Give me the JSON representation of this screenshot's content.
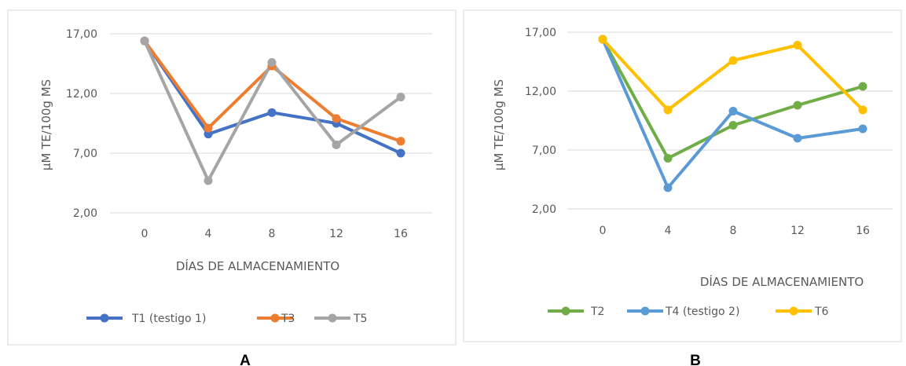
{
  "chart_data": [
    {
      "type": "line",
      "panel_label": "A",
      "xlabel": "DÍAS DE ALMACENAMIENTO",
      "ylabel": "µM TE/100g MS",
      "categories": [
        "0",
        "4",
        "8",
        "12",
        "16"
      ],
      "yticks": [
        "2,00",
        "7,00",
        "12,00",
        "17,00"
      ],
      "ylim": [
        2,
        17
      ],
      "grid": true,
      "legend_position": "bottom",
      "series": [
        {
          "name": "T1 (testigo 1)",
          "color": "#4472c4",
          "values": [
            16.4,
            8.6,
            10.4,
            9.5,
            7.0
          ]
        },
        {
          "name": "T3",
          "color": "#ed7d31",
          "values": [
            16.4,
            9.1,
            14.3,
            9.9,
            8.0
          ]
        },
        {
          "name": "T5",
          "color": "#a5a5a5",
          "values": [
            16.4,
            4.7,
            14.6,
            7.7,
            11.7
          ]
        }
      ]
    },
    {
      "type": "line",
      "panel_label": "B",
      "xlabel": "DÍAS DE ALMACENAMIENTO",
      "ylabel": "µM TE/100g MS",
      "categories": [
        "0",
        "4",
        "8",
        "12",
        "16"
      ],
      "yticks": [
        "2,00",
        "7,00",
        "12,00",
        "17,00"
      ],
      "ylim": [
        2,
        17
      ],
      "grid": true,
      "legend_position": "bottom",
      "series": [
        {
          "name": "T2",
          "color": "#70ad47",
          "values": [
            16.4,
            6.3,
            9.1,
            10.8,
            12.4
          ]
        },
        {
          "name": "T4 (testigo 2)",
          "color": "#5b9bd5",
          "values": [
            16.4,
            3.8,
            10.3,
            8.0,
            8.8
          ]
        },
        {
          "name": "T6",
          "color": "#ffc000",
          "values": [
            16.4,
            10.4,
            14.6,
            15.9,
            10.4
          ]
        }
      ]
    }
  ]
}
